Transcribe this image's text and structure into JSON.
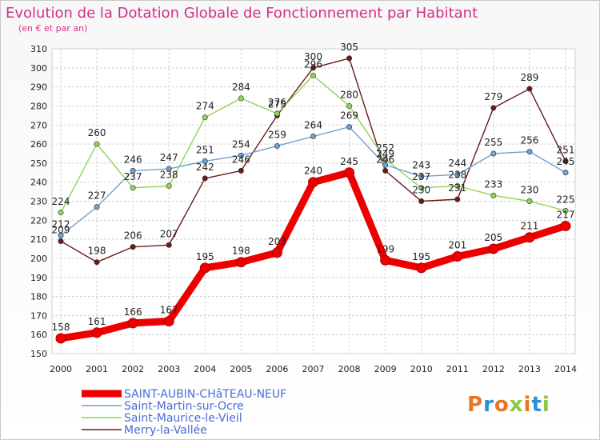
{
  "title": "Evolution de la Dotation Globale de Fonctionnement par Habitant",
  "subtitle": "(en € et par an)",
  "logo": {
    "text": "Proxiti"
  },
  "chart_data": {
    "type": "line",
    "title": "Evolution de la Dotation Globale de Fonctionnement par Habitant",
    "subtitle": "(en € et par an)",
    "x": [
      2000,
      2001,
      2002,
      2003,
      2004,
      2005,
      2006,
      2007,
      2008,
      2009,
      2010,
      2011,
      2012,
      2013,
      2014
    ],
    "ylim": [
      150,
      310
    ],
    "yticks": [
      150,
      160,
      170,
      180,
      190,
      200,
      210,
      220,
      230,
      240,
      250,
      260,
      270,
      280,
      290,
      300,
      310
    ],
    "grid": true,
    "legend_position": "bottom-left",
    "series": [
      {
        "name": "SAINT-AUBIN-CHâTEAU-NEUF",
        "color": "#ee0000",
        "values": [
          158,
          161,
          166,
          167,
          195,
          198,
          203,
          240,
          245,
          199,
          195,
          201,
          205,
          211,
          217
        ]
      },
      {
        "name": "Saint-Martin-sur-Ocre",
        "color": "#6fa0d0",
        "values": [
          212,
          227,
          246,
          247,
          251,
          254,
          259,
          264,
          269,
          249,
          243,
          244,
          255,
          256,
          245
        ]
      },
      {
        "name": "Saint-Maurice-le-Vieil",
        "color": "#8ed45a",
        "values": [
          224,
          260,
          237,
          238,
          274,
          284,
          276,
          296,
          280,
          252,
          237,
          238,
          233,
          230,
          225
        ]
      },
      {
        "name": "Merry-la-Vallée",
        "color": "#6b1a1a",
        "values": [
          209,
          198,
          206,
          207,
          242,
          246,
          275,
          300,
          305,
          246,
          230,
          231,
          279,
          289,
          251
        ]
      }
    ]
  }
}
